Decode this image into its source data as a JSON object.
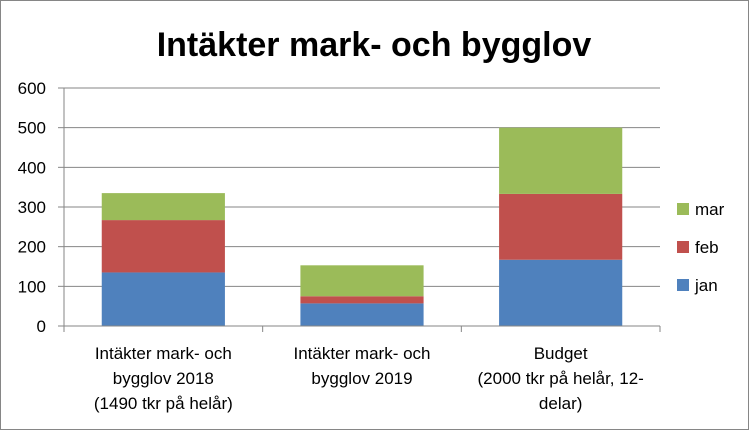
{
  "chart_data": {
    "type": "bar",
    "stacked": true,
    "title": "Intäkter mark- och bygglov",
    "categories": [
      [
        "Intäkter mark- och",
        "bygglov 2018",
        "(1490 tkr på helår)"
      ],
      [
        "Intäkter mark- och",
        "bygglov 2019"
      ],
      [
        "Budget",
        "(2000 tkr på helår, 12-",
        "delar)"
      ]
    ],
    "series": [
      {
        "name": "jan",
        "color": "#4F81BD",
        "values": [
          135,
          57,
          167
        ]
      },
      {
        "name": "feb",
        "color": "#C0504D",
        "values": [
          132,
          18,
          166
        ]
      },
      {
        "name": "mar",
        "color": "#9BBB59",
        "values": [
          68,
          78,
          167
        ]
      }
    ],
    "ylim": [
      0,
      600
    ],
    "yticks": [
      "0",
      "100",
      "200",
      "300",
      "400",
      "500",
      "600"
    ],
    "grid": true,
    "legend": "right"
  }
}
